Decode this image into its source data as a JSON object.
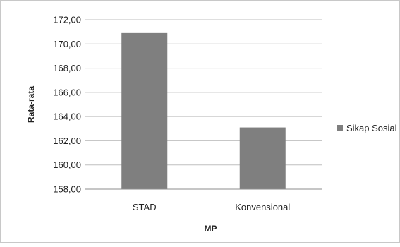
{
  "chart_data": {
    "type": "bar",
    "categories": [
      "STAD",
      "Konvensional"
    ],
    "series": [
      {
        "name": "Sikap Sosial",
        "values": [
          170.9,
          163.1
        ]
      }
    ],
    "title": "",
    "xlabel": "MP",
    "ylabel": "Rata-rata",
    "ylim": [
      158,
      172
    ],
    "yticks": [
      "158,00",
      "160,00",
      "162,00",
      "164,00",
      "166,00",
      "168,00",
      "170,00",
      "172,00"
    ],
    "grid": true,
    "legend": "right",
    "colors": {
      "bar": "#7f7f7f",
      "grid": "#bfbfbf",
      "axis": "#8c8c8c"
    }
  }
}
